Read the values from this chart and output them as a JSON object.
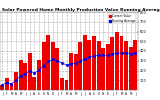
{
  "title": "Milwaukee Solar Powered Home Monthly Production Value Running Average",
  "bar_color": "#ee0000",
  "avg_color": "#0000ee",
  "bar_values": [
    55,
    120,
    60,
    180,
    310,
    280,
    380,
    130,
    310,
    490,
    560,
    490,
    430,
    120,
    100,
    380,
    370,
    490,
    560,
    510,
    550,
    500,
    430,
    470,
    540,
    590,
    550,
    500,
    440,
    510
  ],
  "avg_values": [
    55,
    75,
    65,
    100,
    145,
    168,
    195,
    175,
    202,
    251,
    293,
    313,
    300,
    278,
    258,
    268,
    272,
    296,
    320,
    335,
    350,
    358,
    355,
    358,
    366,
    377,
    381,
    382,
    374,
    380
  ],
  "ylim": [
    0,
    800
  ],
  "yticks": [
    100,
    200,
    300,
    400,
    500,
    600,
    700,
    800
  ],
  "title_fontsize": 3.2,
  "legend_labels": [
    "Current Value",
    "Running Average"
  ],
  "background_color": "#ffffff",
  "grid_color": "#aaaaaa",
  "figsize": [
    1.6,
    1.0
  ],
  "dpi": 100
}
